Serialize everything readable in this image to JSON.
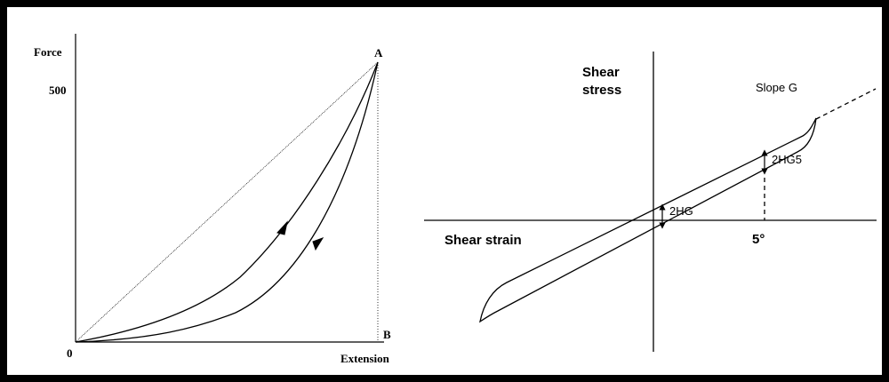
{
  "left": {
    "y_axis_label": "Force",
    "y_tick": "500",
    "point_a": "A",
    "point_b": "B",
    "origin": "0",
    "x_axis_label": "Extension"
  },
  "right": {
    "y_axis_label": [
      "Shear",
      "stress"
    ],
    "slope_label": "Slope G",
    "width_label_right": "2HG5",
    "width_label_center": "2HG",
    "x_axis_label": "Shear strain",
    "strain_label": "5°"
  }
}
